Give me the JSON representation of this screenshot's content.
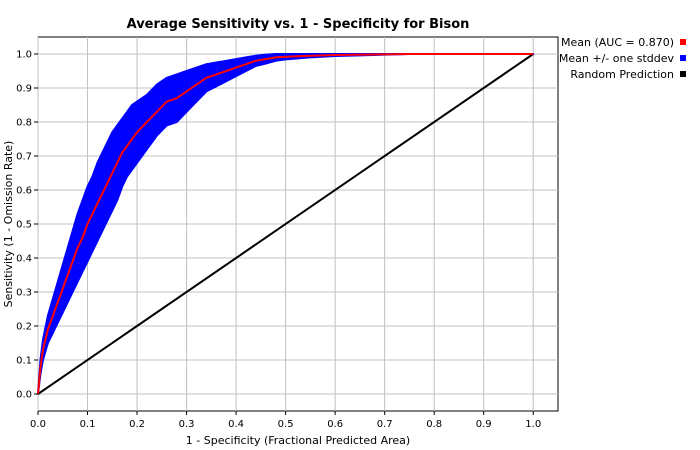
{
  "chart_data": {
    "type": "line",
    "title": "Average Sensitivity vs. 1 - Specificity for Bison",
    "xlabel": "1 - Specificity (Fractional Predicted Area)",
    "ylabel": "Sensitivity (1 - Omission Rate)",
    "xlim": [
      0,
      1.05
    ],
    "ylim": [
      -0.05,
      1.05
    ],
    "x_ticks": [
      "0.0",
      "0.1",
      "0.2",
      "0.3",
      "0.4",
      "0.5",
      "0.6",
      "0.7",
      "0.8",
      "0.9",
      "1.0"
    ],
    "y_ticks": [
      "0.0",
      "0.1",
      "0.2",
      "0.3",
      "0.4",
      "0.5",
      "0.6",
      "0.7",
      "0.8",
      "0.9",
      "1.0"
    ],
    "grid": true,
    "legend": "right",
    "series": [
      {
        "name": "Mean (AUC = 0.870)",
        "color": "#ff0000",
        "x": [
          0,
          0.005,
          0.01,
          0.02,
          0.03,
          0.04,
          0.05,
          0.06,
          0.07,
          0.08,
          0.09,
          0.1,
          0.11,
          0.12,
          0.13,
          0.14,
          0.15,
          0.16,
          0.17,
          0.18,
          0.19,
          0.2,
          0.22,
          0.24,
          0.26,
          0.28,
          0.3,
          0.32,
          0.34,
          0.36,
          0.38,
          0.4,
          0.42,
          0.44,
          0.46,
          0.48,
          0.5,
          0.55,
          0.6,
          0.65,
          0.7,
          0.75,
          0.8,
          0.9,
          1.0
        ],
        "y": [
          0,
          0.08,
          0.13,
          0.19,
          0.23,
          0.27,
          0.31,
          0.35,
          0.39,
          0.43,
          0.46,
          0.5,
          0.53,
          0.56,
          0.59,
          0.62,
          0.65,
          0.68,
          0.71,
          0.73,
          0.75,
          0.77,
          0.8,
          0.83,
          0.86,
          0.87,
          0.89,
          0.91,
          0.93,
          0.94,
          0.95,
          0.96,
          0.97,
          0.98,
          0.985,
          0.99,
          0.992,
          0.995,
          0.997,
          0.998,
          0.999,
          1.0,
          1.0,
          1.0,
          1.0
        ]
      },
      {
        "name": "Mean +/- one stddev",
        "color": "#0000ff",
        "x": [
          0,
          0.005,
          0.01,
          0.02,
          0.03,
          0.04,
          0.05,
          0.06,
          0.07,
          0.08,
          0.09,
          0.1,
          0.11,
          0.12,
          0.13,
          0.14,
          0.15,
          0.16,
          0.17,
          0.18,
          0.19,
          0.2,
          0.22,
          0.24,
          0.26,
          0.28,
          0.3,
          0.32,
          0.34,
          0.36,
          0.38,
          0.4,
          0.42,
          0.44,
          0.46,
          0.48,
          0.5,
          0.55,
          0.6,
          0.65,
          0.7,
          0.75,
          0.8,
          0.9,
          1.0
        ],
        "upper": [
          0,
          0.1,
          0.16,
          0.23,
          0.28,
          0.33,
          0.38,
          0.43,
          0.48,
          0.53,
          0.57,
          0.61,
          0.64,
          0.68,
          0.71,
          0.74,
          0.77,
          0.79,
          0.81,
          0.83,
          0.85,
          0.86,
          0.88,
          0.91,
          0.93,
          0.94,
          0.95,
          0.96,
          0.97,
          0.975,
          0.98,
          0.985,
          0.99,
          0.995,
          0.998,
          1.0,
          1.0,
          1.0,
          1.0,
          1.0,
          1.0,
          1.0,
          1.0,
          1.0,
          1.0
        ],
        "lower": [
          0,
          0.06,
          0.1,
          0.15,
          0.18,
          0.21,
          0.24,
          0.27,
          0.3,
          0.33,
          0.36,
          0.39,
          0.42,
          0.45,
          0.48,
          0.51,
          0.54,
          0.57,
          0.61,
          0.64,
          0.66,
          0.68,
          0.72,
          0.76,
          0.79,
          0.8,
          0.83,
          0.86,
          0.89,
          0.905,
          0.92,
          0.935,
          0.95,
          0.965,
          0.972,
          0.98,
          0.984,
          0.99,
          0.994,
          0.996,
          0.998,
          1.0,
          1.0,
          1.0,
          1.0
        ]
      },
      {
        "name": "Random Prediction",
        "color": "#000000",
        "x": [
          0,
          1
        ],
        "y": [
          0,
          1
        ]
      }
    ]
  }
}
